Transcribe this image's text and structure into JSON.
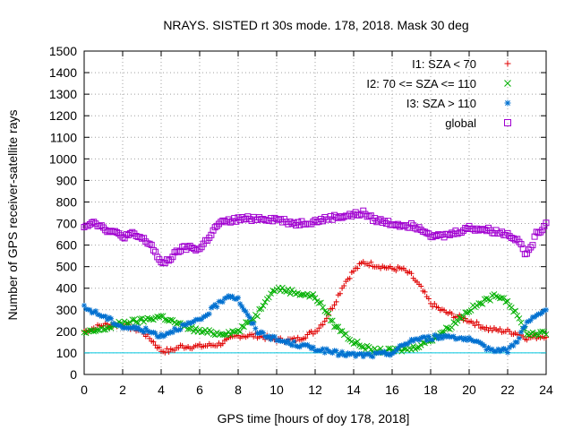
{
  "chart_data": {
    "type": "scatter",
    "title": "NRAYS. SISTED rt 30s mode. 178, 2018. Mask 30 deg",
    "xlabel": "GPS time [hours of doy 178, 2018]",
    "ylabel": "Number of GPS receiver-satellite rays",
    "xlim": [
      0,
      24
    ],
    "ylim": [
      0,
      1500
    ],
    "x_ticks": [
      0,
      2,
      4,
      6,
      8,
      10,
      12,
      14,
      16,
      18,
      20,
      22,
      24
    ],
    "y_ticks": [
      0,
      100,
      200,
      300,
      400,
      500,
      600,
      700,
      800,
      900,
      1000,
      1100,
      1200,
      1300,
      1400,
      1500
    ],
    "grid": true,
    "legend_position": "top-right",
    "reference_line": {
      "y": 100,
      "color": "#00c8e0"
    },
    "series": [
      {
        "name": "I1: SZA < 70",
        "color": "#e00000",
        "marker": "+",
        "x": [
          0,
          1,
          2,
          3,
          3.5,
          4,
          4.5,
          5,
          6,
          7,
          8,
          9,
          10,
          11,
          12,
          12.5,
          13,
          13.5,
          14,
          14.5,
          15,
          15.5,
          16,
          16.5,
          17,
          17.5,
          18,
          18.5,
          19,
          20,
          21,
          22,
          22.5,
          23,
          24
        ],
        "values": [
          200,
          230,
          230,
          200,
          160,
          110,
          110,
          130,
          130,
          140,
          180,
          180,
          160,
          160,
          200,
          250,
          330,
          420,
          480,
          520,
          510,
          500,
          490,
          490,
          460,
          400,
          330,
          300,
          280,
          250,
          210,
          200,
          190,
          170,
          180
        ]
      },
      {
        "name": "I2: 70 <= SZA <= 110",
        "color": "#00b000",
        "marker": "x",
        "x": [
          0,
          1,
          2,
          3,
          4,
          5,
          6,
          7,
          8,
          9,
          9.5,
          10,
          11,
          12,
          12.5,
          13,
          14,
          15,
          16,
          17,
          18,
          19,
          20,
          21,
          21.5,
          22,
          22.5,
          23,
          24
        ],
        "values": [
          190,
          210,
          240,
          250,
          270,
          230,
          200,
          190,
          200,
          280,
          360,
          400,
          380,
          360,
          300,
          230,
          150,
          110,
          110,
          120,
          160,
          220,
          300,
          350,
          370,
          340,
          270,
          190,
          190
        ]
      },
      {
        "name": "I3: SZA > 110",
        "color": "#0070d0",
        "marker": "*",
        "x": [
          0,
          1,
          2,
          3,
          4,
          5,
          6,
          6.5,
          7,
          7.5,
          8,
          8.5,
          9,
          10,
          11,
          12,
          13,
          14,
          15,
          16,
          17,
          18,
          19,
          20,
          21,
          22,
          22.5,
          23,
          24
        ],
        "values": [
          310,
          270,
          220,
          210,
          180,
          220,
          250,
          290,
          330,
          370,
          350,
          270,
          200,
          160,
          140,
          120,
          100,
          90,
          90,
          100,
          160,
          170,
          180,
          160,
          120,
          110,
          160,
          240,
          300
        ]
      },
      {
        "name": "global",
        "color": "#a000d0",
        "marker": "square",
        "x": [
          0,
          0.5,
          1,
          1.5,
          2,
          2.5,
          3,
          3.5,
          4,
          4.5,
          5,
          5.5,
          6,
          6.5,
          7,
          7.5,
          8,
          9,
          10,
          11,
          12,
          13,
          14,
          14.5,
          15,
          16,
          17,
          17.5,
          18,
          18.5,
          19,
          20,
          21,
          22,
          22.5,
          23,
          23.5,
          24
        ],
        "values": [
          690,
          710,
          680,
          660,
          640,
          650,
          630,
          600,
          510,
          540,
          580,
          590,
          580,
          640,
          700,
          710,
          720,
          725,
          720,
          700,
          710,
          730,
          740,
          750,
          720,
          700,
          690,
          680,
          650,
          640,
          650,
          680,
          670,
          650,
          630,
          550,
          650,
          700
        ]
      }
    ]
  }
}
